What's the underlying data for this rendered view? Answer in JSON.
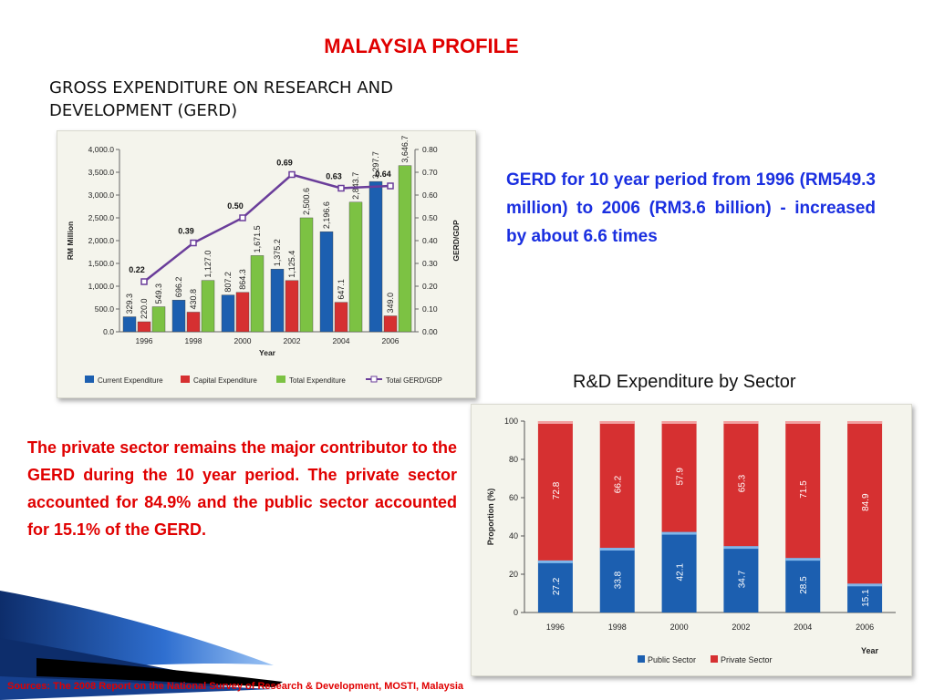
{
  "slide": {
    "title": "MALAYSIA PROFILE",
    "subtitle": "GROSS EXPENDITURE ON RESEARCH AND DEVELOPMENT (GERD)",
    "gerd_text": "GERD for 10 year period from 1996 (RM549.3 million) to 2006 (RM3.6 billion) - increased by about 6.6 times",
    "sector_title": "R&D Expenditure by Sector",
    "private_text": "The private sector remains the major contributor to the GERD during the 10 year period. The private sector accounted for 84.9% and the public sector accounted for 15.1% of the GERD.",
    "source": "Sources: The 2008 Report on the National Survey of Research & Development, MOSTI, Malaysia"
  },
  "colors": {
    "title_red": "#e00000",
    "text_blue": "#1a2fe0",
    "current": "#1c5fb0",
    "capital": "#d63031",
    "total": "#7cc243",
    "gerd_line": "#6a3d9a"
  },
  "chart_data": [
    {
      "type": "bar",
      "categories": [
        "1996",
        "1998",
        "2000",
        "2002",
        "2004",
        "2006"
      ],
      "series": [
        {
          "name": "Current Expenditure",
          "values": [
            329.3,
            696.2,
            807.2,
            1375.2,
            2196.6,
            3297.7
          ],
          "labels": [
            "329.3",
            "696.2",
            "807.2",
            "1,375.2",
            "2,196.6",
            "3,297.7"
          ]
        },
        {
          "name": "Capital Expenditure",
          "values": [
            220.0,
            430.8,
            864.3,
            1125.4,
            647.1,
            349.0
          ],
          "labels": [
            "220.0",
            "430.8",
            "864.3",
            "1,125.4",
            "647.1",
            "349.0"
          ]
        },
        {
          "name": "Total Expenditure",
          "values": [
            549.3,
            1127.0,
            1671.5,
            2500.6,
            2843.7,
            3646.7
          ],
          "labels": [
            "549.3",
            "1,127.0",
            "1,671.5",
            "2,500.6",
            "2,843.7",
            "3,646.7"
          ]
        }
      ],
      "line_series": {
        "name": "Total GERD/GDP",
        "values": [
          0.22,
          0.39,
          0.5,
          0.69,
          0.63,
          0.64
        ],
        "labels": [
          "0.22",
          "0.39",
          "0.50",
          "0.69",
          "0.63",
          "0.64"
        ]
      },
      "xlabel": "Year",
      "ylabel": "RM Million",
      "y2label": "GERD/GDP",
      "ylim": [
        0,
        4000
      ],
      "y_ticks": [
        "0.0",
        "500.0",
        "1,000.0",
        "1,500.0",
        "2,000.0",
        "2,500.0",
        "3,000.0",
        "3,500.0",
        "4,000.0"
      ],
      "y2lim": [
        0,
        0.8
      ],
      "y2_ticks": [
        "0.00",
        "0.10",
        "0.20",
        "0.30",
        "0.40",
        "0.50",
        "0.60",
        "0.70",
        "0.80"
      ],
      "legend": [
        "Current Expenditure",
        "Capital Expenditure",
        "Total Expenditure",
        "Total GERD/GDP"
      ],
      "legend_position": "bottom"
    },
    {
      "type": "bar",
      "stacked": true,
      "categories": [
        "1996",
        "1998",
        "2000",
        "2002",
        "2004",
        "2006"
      ],
      "series": [
        {
          "name": "Public Sector",
          "values": [
            27.2,
            33.8,
            42.1,
            34.7,
            28.5,
            15.1
          ]
        },
        {
          "name": "Private Sector",
          "values": [
            72.8,
            66.2,
            57.9,
            65.3,
            71.5,
            84.9
          ]
        }
      ],
      "xlabel": "Year",
      "ylabel": "Proportion (%)",
      "ylim": [
        0,
        100
      ],
      "y_ticks": [
        "0",
        "20",
        "40",
        "60",
        "80",
        "100"
      ],
      "legend": [
        "Public Sector",
        "Private Sector"
      ],
      "legend_position": "bottom"
    }
  ]
}
